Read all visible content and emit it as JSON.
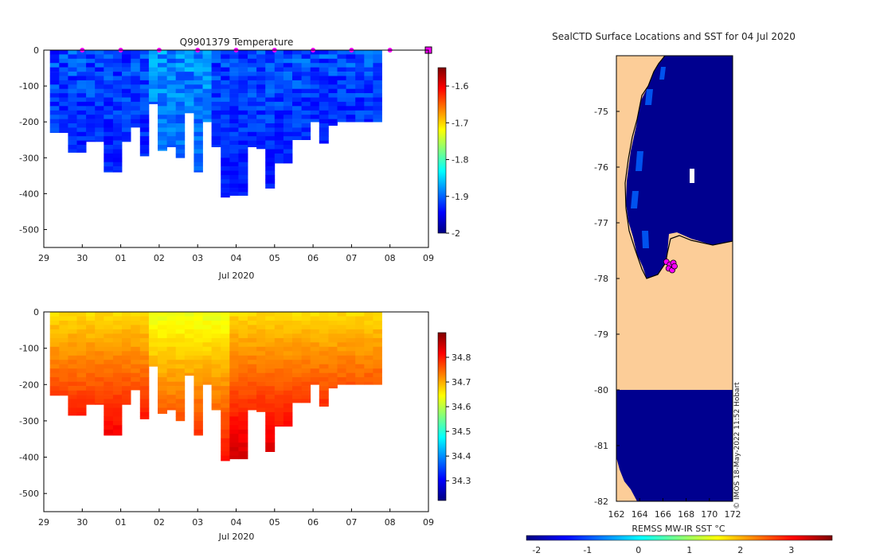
{
  "colors": {
    "land": "#fccd98",
    "ocean_deep": "#00008f",
    "marker": "#ff00ff",
    "jet": [
      "#00007f",
      "#0000ff",
      "#007fff",
      "#00ffff",
      "#7fff7f",
      "#ffff00",
      "#ff7f00",
      "#ff0000",
      "#7f0000"
    ]
  },
  "chart_data": [
    {
      "type": "heatmap",
      "name": "temperature-section",
      "title": "Q9901379  Temperature",
      "xlabel": "Jul 2020",
      "ylabel": "",
      "xticks": [
        "29",
        "30",
        "01",
        "02",
        "03",
        "04",
        "05",
        "06",
        "07",
        "08",
        "09"
      ],
      "xlim": [
        0,
        10
      ],
      "ylim": [
        -550,
        0
      ],
      "yticks": [
        0,
        -100,
        -200,
        -300,
        -400,
        -500
      ],
      "profile_x": [
        0.16,
        0.4,
        0.63,
        0.86,
        1.1,
        1.33,
        1.56,
        1.8,
        2.03,
        2.26,
        2.5,
        2.73,
        2.96,
        3.2,
        3.43,
        3.66,
        3.9,
        4.13,
        4.36,
        4.6,
        4.83,
        5.06,
        5.3,
        5.53,
        5.76,
        6.0,
        6.23,
        6.46,
        6.7,
        6.93,
        7.16,
        7.4,
        7.63,
        7.86,
        8.1,
        8.33,
        8.56
      ],
      "profile_depth": [
        230,
        230,
        285,
        285,
        255,
        255,
        340,
        340,
        255,
        215,
        295,
        150,
        280,
        270,
        300,
        175,
        340,
        200,
        270,
        410,
        405,
        405,
        270,
        275,
        385,
        315,
        315,
        250,
        250,
        200,
        260,
        210,
        200,
        200,
        200,
        200,
        200
      ],
      "colorbar": {
        "min": -2.0,
        "max": -1.55,
        "ticks": [
          -1.6,
          -1.7,
          -1.8,
          -1.9,
          -2
        ]
      },
      "cell_range": [
        -1.98,
        -1.88
      ],
      "surface_markers_x": [
        1,
        2,
        3,
        4,
        5,
        6,
        7,
        8,
        9
      ],
      "end_marker_x": 10
    },
    {
      "type": "heatmap",
      "name": "salinity-section",
      "title": "",
      "xlabel": "Jul 2020",
      "ylabel": "",
      "xticks": [
        "29",
        "30",
        "01",
        "02",
        "03",
        "04",
        "05",
        "06",
        "07",
        "08",
        "09"
      ],
      "xlim": [
        0,
        10
      ],
      "ylim": [
        -550,
        0
      ],
      "yticks": [
        0,
        -100,
        -200,
        -300,
        -400,
        -500
      ],
      "profile_x": [
        0.16,
        0.4,
        0.63,
        0.86,
        1.1,
        1.33,
        1.56,
        1.8,
        2.03,
        2.26,
        2.5,
        2.73,
        2.96,
        3.2,
        3.43,
        3.66,
        3.9,
        4.13,
        4.36,
        4.6,
        4.83,
        5.06,
        5.3,
        5.53,
        5.76,
        6.0,
        6.23,
        6.46,
        6.7,
        6.93,
        7.16,
        7.4,
        7.63,
        7.86,
        8.1,
        8.33,
        8.56
      ],
      "profile_depth": [
        230,
        230,
        285,
        285,
        255,
        255,
        340,
        340,
        255,
        215,
        295,
        150,
        280,
        270,
        300,
        175,
        340,
        200,
        270,
        410,
        405,
        405,
        270,
        275,
        385,
        315,
        315,
        250,
        250,
        200,
        260,
        210,
        200,
        200,
        200,
        200,
        200
      ],
      "colorbar": {
        "min": 34.22,
        "max": 34.9,
        "ticks": [
          34.8,
          34.7,
          34.6,
          34.5,
          34.4,
          34.3
        ]
      },
      "cell_range": [
        34.62,
        34.85
      ]
    },
    {
      "type": "heatmap",
      "name": "sst-map",
      "title": "SealCTD Surface Locations and SST for 04 Jul 2020",
      "xlabel": "",
      "ylabel": "",
      "xticks": [
        "162",
        "164",
        "166",
        "168",
        "170",
        "172"
      ],
      "yticks": [
        "-75",
        "-76",
        "-77",
        "-78",
        "-79",
        "-80",
        "-81",
        "-82"
      ],
      "xlim": [
        162,
        172
      ],
      "ylim": [
        -82,
        -74
      ],
      "colorbar": {
        "label": "REMSS MW-IR SST °C",
        "min": -2.2,
        "max": 3.8,
        "ticks": [
          "-2",
          "-1",
          "0",
          "1",
          "2",
          "3"
        ]
      },
      "positions_lon": [
        166.3,
        166.6,
        166.9,
        166.5,
        166.8,
        167.0
      ],
      "positions_lat": [
        -77.7,
        -77.75,
        -77.72,
        -77.82,
        -77.85,
        -77.78
      ],
      "watermark": "© IMOS 18-May-2022 11:52 Hobart"
    }
  ]
}
